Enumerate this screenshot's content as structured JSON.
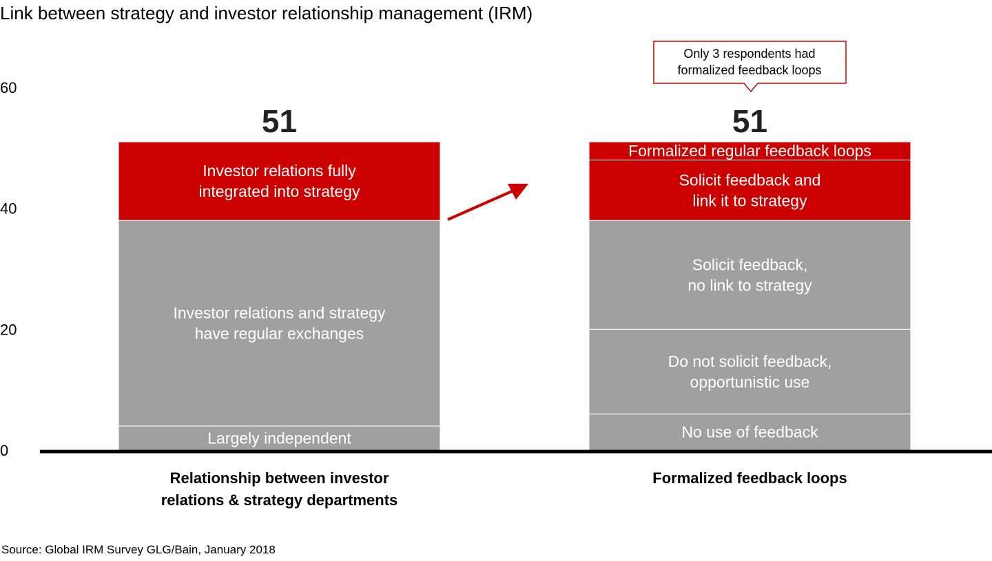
{
  "chart_data": {
    "type": "bar",
    "stacked": true,
    "title": "Link between strategy and investor relationship management (IRM)",
    "ylim": [
      0,
      60
    ],
    "yticks": [
      0,
      20,
      40,
      60
    ],
    "grid": false,
    "categories": [
      "Relationship between investor relations & strategy departments",
      "Formalized feedback loops"
    ],
    "category_label_lines": [
      [
        "Relationship between investor",
        "relations & strategy departments"
      ],
      [
        "Formalized feedback loops"
      ]
    ],
    "totals": [
      51,
      51
    ],
    "bars": [
      {
        "segments": [
          {
            "label": [
              "Largely independent"
            ],
            "value": 4,
            "color": "#A0A0A0"
          },
          {
            "label": [
              "Investor relations and strategy",
              "have regular exchanges"
            ],
            "value": 34,
            "color": "#A0A0A0"
          },
          {
            "label": [
              "Investor relations fully",
              "integrated into strategy"
            ],
            "value": 13,
            "color": "#CC0000"
          }
        ]
      },
      {
        "segments": [
          {
            "label": [
              "No use of feedback"
            ],
            "value": 6,
            "color": "#A0A0A0"
          },
          {
            "label": [
              "Do not solicit feedback,",
              "opportunistic use"
            ],
            "value": 14,
            "color": "#A0A0A0"
          },
          {
            "label": [
              "Solicit feedback,",
              "no link to strategy"
            ],
            "value": 18,
            "color": "#A0A0A0"
          },
          {
            "label": [
              "Solicit feedback and",
              "link it to strategy"
            ],
            "value": 10,
            "color": "#CC0000"
          },
          {
            "label": [
              "Formalized regular feedback loops"
            ],
            "value": 3,
            "color": "#CC0000"
          }
        ]
      }
    ],
    "annotation": [
      "Only 3 respondents had",
      "formalized feedback loops"
    ],
    "accent_color": "#CC0000"
  },
  "source": "Source: Global IRM Survey GLG/Bain, January 2018"
}
